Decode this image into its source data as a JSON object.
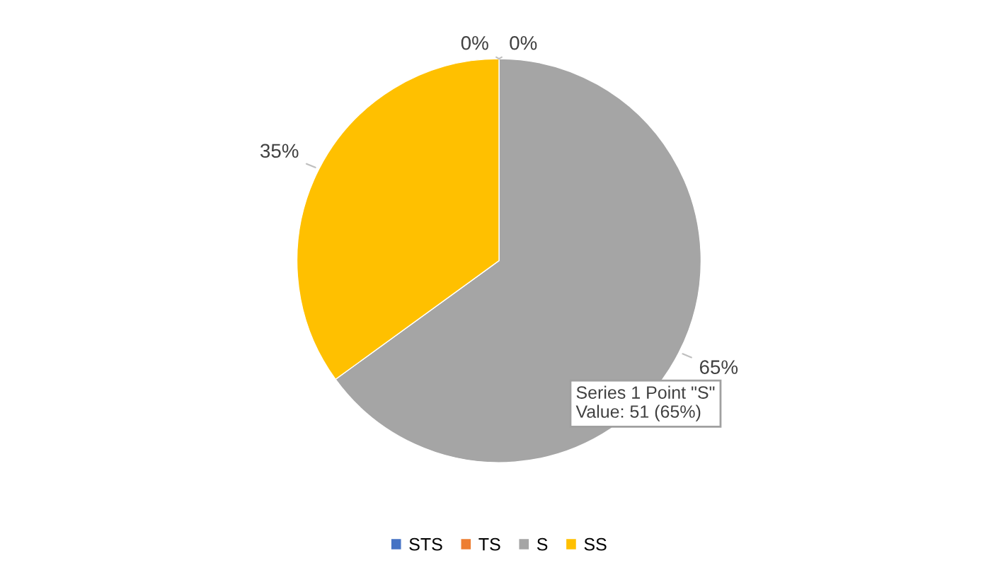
{
  "chart_data": {
    "type": "pie",
    "categories": [
      "STS",
      "TS",
      "S",
      "SS"
    ],
    "values": [
      0,
      0,
      65,
      35
    ],
    "colors": [
      "#4472c4",
      "#ed7d31",
      "#a5a5a5",
      "#ffc000"
    ],
    "value_labels": [
      "0%",
      "0%",
      "65%",
      "35%"
    ],
    "annotations": [
      "Series 1 Point \"S\"\nValue: 51 (65%)"
    ],
    "legend": "bottom"
  }
}
